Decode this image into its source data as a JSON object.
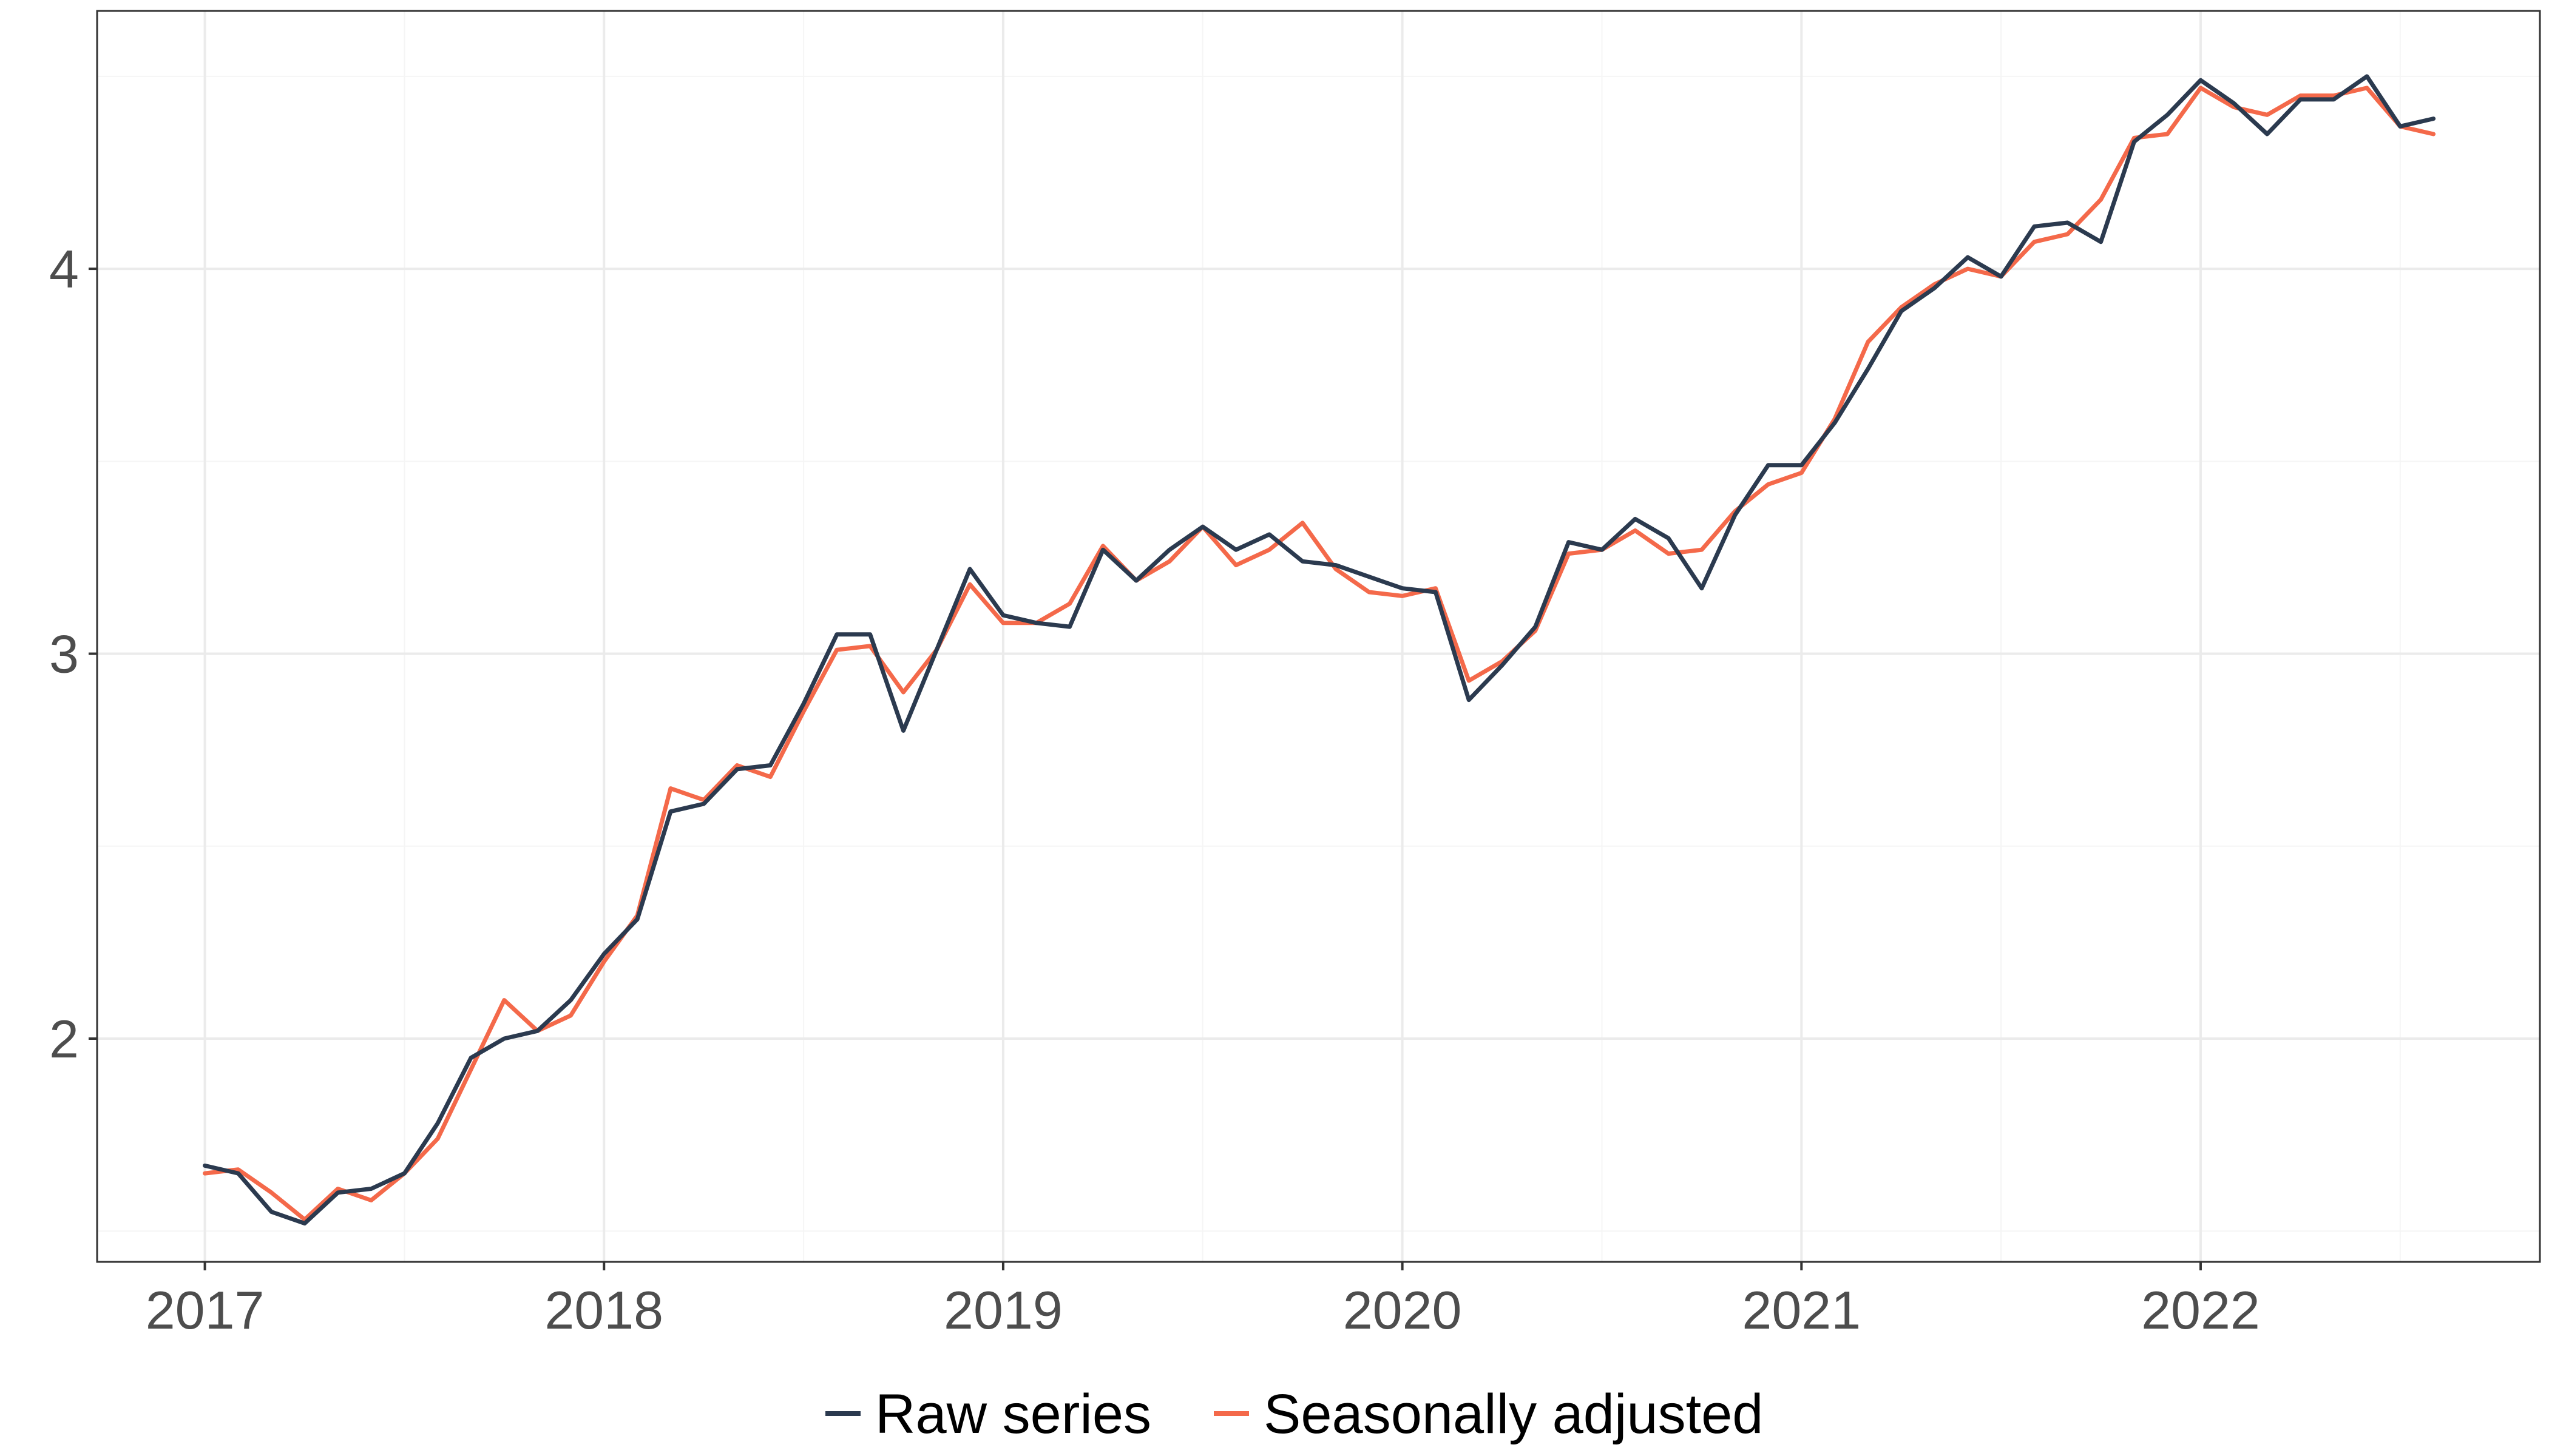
{
  "colors": {
    "raw": "#2b3a4f",
    "adjusted": "#f4694a",
    "grid_major": "#ebebeb",
    "grid_minor": "#f5f5f5",
    "panel_border": "#333333",
    "background": "#ffffff"
  },
  "chart_data": {
    "type": "line",
    "title": "",
    "xlabel": "",
    "ylabel": "",
    "x_start": "2017-01",
    "x_frequency": "monthly",
    "xlim": [
      2016.73,
      2022.85
    ],
    "ylim": [
      1.42,
      4.67
    ],
    "x_ticks": [
      2017,
      2018,
      2019,
      2020,
      2021,
      2022
    ],
    "x_tick_labels": [
      "2017",
      "2018",
      "2019",
      "2020",
      "2021",
      "2022"
    ],
    "y_ticks": [
      2,
      3,
      4
    ],
    "y_tick_labels": [
      "2",
      "3",
      "4"
    ],
    "grid": true,
    "legend_position": "bottom",
    "series": [
      {
        "name": "Raw series",
        "color_key": "raw",
        "values": [
          1.67,
          1.65,
          1.55,
          1.52,
          1.6,
          1.61,
          1.65,
          1.78,
          1.95,
          2.0,
          2.02,
          2.1,
          2.22,
          2.31,
          2.59,
          2.61,
          2.7,
          2.71,
          2.87,
          3.05,
          3.05,
          2.8,
          3.01,
          3.22,
          3.1,
          3.08,
          3.07,
          3.27,
          3.19,
          3.27,
          3.33,
          3.27,
          3.31,
          3.24,
          3.23,
          3.2,
          3.17,
          3.16,
          2.88,
          2.97,
          3.07,
          3.29,
          3.27,
          3.35,
          3.3,
          3.17,
          3.36,
          3.49,
          3.49,
          3.6,
          3.74,
          3.89,
          3.95,
          4.03,
          3.98,
          4.11,
          4.12,
          4.07,
          4.33,
          4.4,
          4.49,
          4.43,
          4.35,
          4.44,
          4.44,
          4.5,
          4.37,
          4.39
        ]
      },
      {
        "name": "Seasonally adjusted",
        "color_key": "adjusted",
        "values": [
          1.65,
          1.66,
          1.6,
          1.53,
          1.61,
          1.58,
          1.65,
          1.74,
          1.92,
          2.1,
          2.02,
          2.06,
          2.2,
          2.32,
          2.65,
          2.62,
          2.71,
          2.68,
          2.85,
          3.01,
          3.02,
          2.9,
          3.01,
          3.18,
          3.08,
          3.08,
          3.13,
          3.28,
          3.19,
          3.24,
          3.33,
          3.23,
          3.27,
          3.34,
          3.22,
          3.16,
          3.15,
          3.17,
          2.93,
          2.98,
          3.06,
          3.26,
          3.27,
          3.32,
          3.26,
          3.27,
          3.37,
          3.44,
          3.47,
          3.61,
          3.81,
          3.9,
          3.96,
          4.0,
          3.98,
          4.07,
          4.09,
          4.18,
          4.34,
          4.35,
          4.47,
          4.42,
          4.4,
          4.45,
          4.45,
          4.47,
          4.37,
          4.35
        ]
      }
    ]
  }
}
